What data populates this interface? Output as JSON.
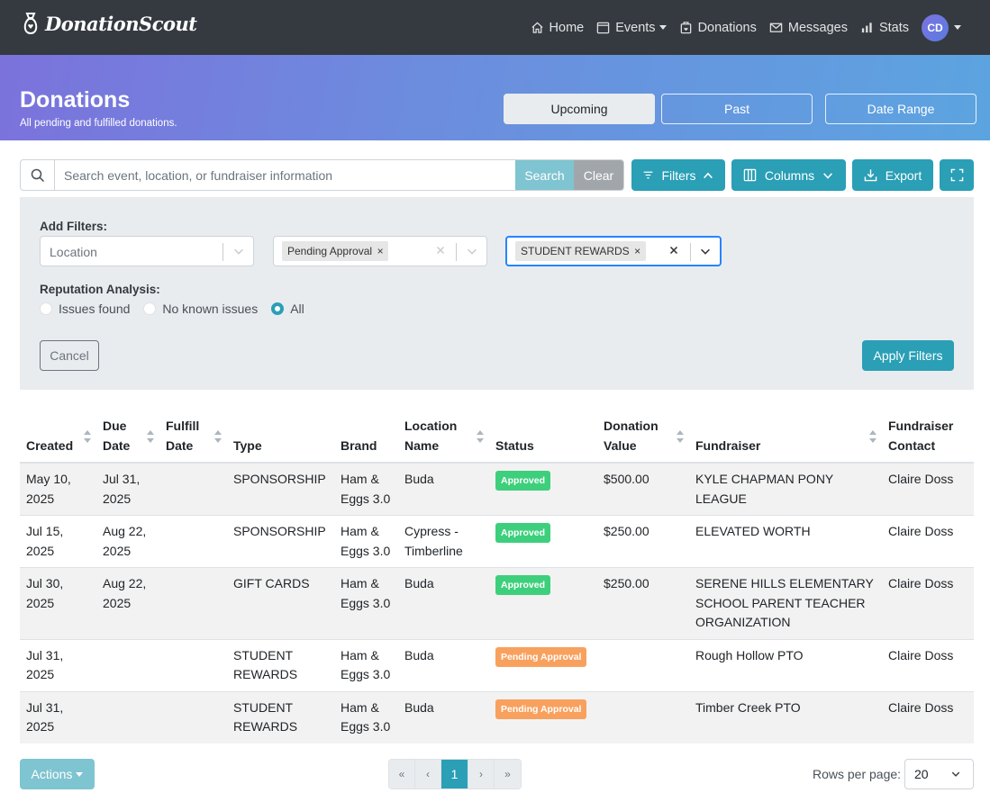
{
  "app": {
    "brand": "DonationScout"
  },
  "nav": {
    "home": "Home",
    "events": "Events",
    "donations": "Donations",
    "messages": "Messages",
    "stats": "Stats",
    "avatar_initials": "CD"
  },
  "hero": {
    "title": "Donations",
    "subtitle": "All pending and fulfilled donations.",
    "tabs": [
      "Upcoming",
      "Past",
      "Date Range"
    ],
    "active_tab": "Upcoming"
  },
  "search": {
    "placeholder": "Search event, location, or fundraiser information",
    "search_label": "Search",
    "clear_label": "Clear"
  },
  "toolbar": {
    "filters_label": "Filters",
    "columns_label": "Columns",
    "export_label": "Export"
  },
  "filters": {
    "add_filters_label": "Add Filters:",
    "location_placeholder": "Location",
    "status_chip": "Pending Approval",
    "type_chip": "STUDENT REWARDS",
    "reputation_label": "Reputation Analysis:",
    "reputation_options": [
      "Issues found",
      "No known issues",
      "All"
    ],
    "reputation_selected": "All",
    "cancel_label": "Cancel",
    "apply_label": "Apply Filters"
  },
  "table": {
    "headers": {
      "created": "Created",
      "due_date": "Due Date",
      "fulfill_date": "Fulfill Date",
      "type": "Type",
      "brand": "Brand",
      "location_name": "Location Name",
      "status": "Status",
      "donation_value": "Donation Value",
      "fundraiser": "Fundraiser",
      "fundraiser_contact": "Fundraiser Contact"
    },
    "rows": [
      {
        "created": "May 10, 2025",
        "due": "Jul 31, 2025",
        "fulfill": "",
        "type": "SPONSORSHIP",
        "brand": "Ham & Eggs 3.0",
        "location": "Buda",
        "status": "Approved",
        "value": "$500.00",
        "fundraiser": "KYLE CHAPMAN PONY LEAGUE",
        "contact": "Claire Doss"
      },
      {
        "created": "Jul 15, 2025",
        "due": "Aug 22, 2025",
        "fulfill": "",
        "type": "SPONSORSHIP",
        "brand": "Ham & Eggs 3.0",
        "location": "Cypress - Timberline",
        "status": "Approved",
        "value": "$250.00",
        "fundraiser": "ELEVATED WORTH",
        "contact": "Claire Doss"
      },
      {
        "created": "Jul 30, 2025",
        "due": "Aug 22, 2025",
        "fulfill": "",
        "type": "GIFT CARDS",
        "brand": "Ham & Eggs 3.0",
        "location": "Buda",
        "status": "Approved",
        "value": "$250.00",
        "fundraiser": "SERENE HILLS ELEMENTARY SCHOOL PARENT TEACHER ORGANIZATION",
        "contact": "Claire Doss"
      },
      {
        "created": "Jul 31, 2025",
        "due": "",
        "fulfill": "",
        "type": "STUDENT REWARDS",
        "brand": "Ham & Eggs 3.0",
        "location": "Buda",
        "status": "Pending Approval",
        "value": "",
        "fundraiser": "Rough Hollow PTO",
        "contact": "Claire Doss"
      },
      {
        "created": "Jul 31, 2025",
        "due": "",
        "fulfill": "",
        "type": "STUDENT REWARDS",
        "brand": "Ham & Eggs 3.0",
        "location": "Buda",
        "status": "Pending Approval",
        "value": "",
        "fundraiser": "Timber Creek PTO",
        "contact": "Claire Doss"
      }
    ]
  },
  "colors": {
    "approved": "#3ecf7d",
    "pending": "#f8a15e",
    "accent": "#2a9fb6"
  },
  "footer": {
    "actions_label": "Actions",
    "pager": {
      "first": "«",
      "prev": "‹",
      "current": "1",
      "next": "›",
      "last": "»"
    },
    "rows_per_page_label": "Rows per page:",
    "rows_per_page_value": "20"
  }
}
